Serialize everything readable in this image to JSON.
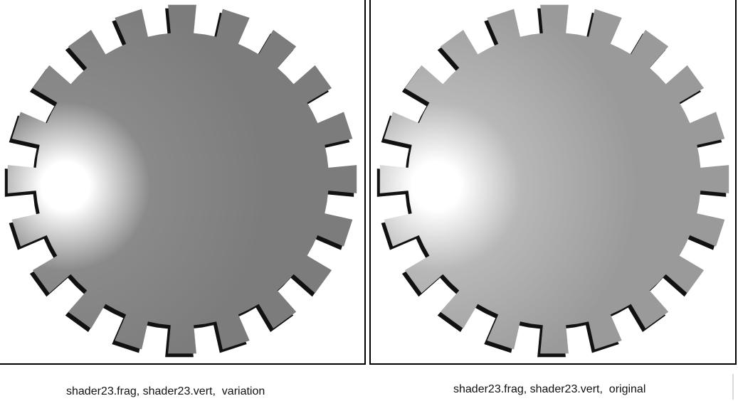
{
  "images": [
    {
      "caption": "shader23.frag, shader23.vert,  variation",
      "gear": {
        "teeth": 20,
        "highlight_color": "#ffffff",
        "mid_color": "#8a8a8a",
        "base_color": "#7c7c7c",
        "shadow_color": "#111111"
      }
    },
    {
      "caption": "shader23.frag, shader23.vert,  original",
      "gear": {
        "teeth": 20,
        "highlight_color": "#ffffff",
        "mid_color": "#b8b8b8",
        "base_color": "#9a9a9a",
        "shadow_color": "#111111"
      }
    }
  ]
}
